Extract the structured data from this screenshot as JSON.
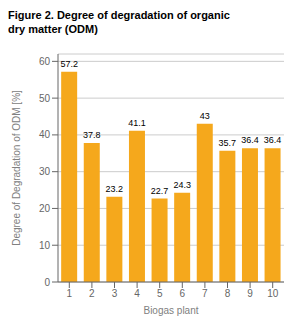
{
  "chart_data": {
    "type": "bar",
    "title": "Figure 2. Degree of degradation of organic\ndry matter (ODM)",
    "x_label": "Biogas plant",
    "y_label": "Degree of Degradation of ODM [%]",
    "categories": [
      "1",
      "2",
      "3",
      "4",
      "5",
      "6",
      "7",
      "8",
      "9",
      "10"
    ],
    "values": [
      57.2,
      37.8,
      23.2,
      41.1,
      22.7,
      24.3,
      43.0,
      35.7,
      36.4,
      36.4
    ],
    "color": "#F5A81C",
    "ylim": [
      0,
      62
    ],
    "yticks": [
      0,
      10,
      20,
      30,
      40,
      50,
      60
    ],
    "grid": true,
    "data_labels": true
  }
}
